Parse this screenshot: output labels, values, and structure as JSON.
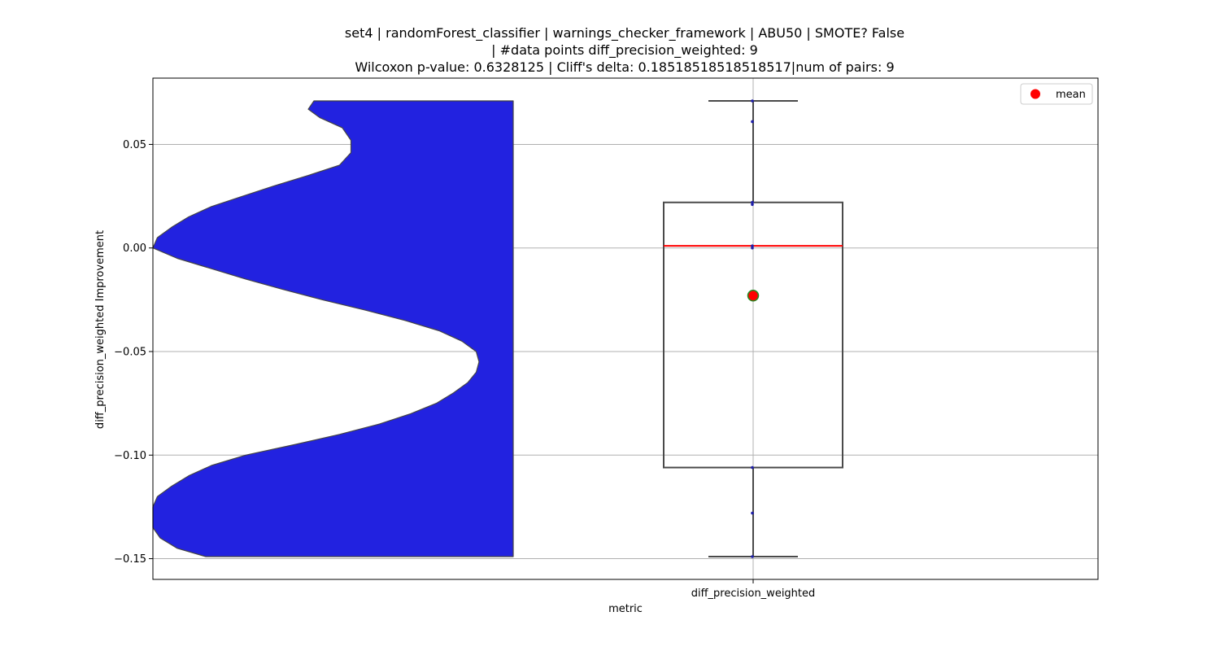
{
  "chart_data": {
    "type": "violin+box",
    "title_lines": [
      "set4 | randomForest_classifier | warnings_checker_framework | ABU50 | SMOTE? False",
      "| #data points diff_precision_weighted: 9",
      "Wilcoxon p-value: 0.6328125 | Cliff's delta: 0.18518518518518517|num of pairs: 9"
    ],
    "xlabel": "metric",
    "ylabel": "diff_precision_weighted Improvement",
    "category": "diff_precision_weighted",
    "ylim": [
      -0.16,
      0.082
    ],
    "yticks": [
      0.05,
      0.0,
      -0.05,
      -0.1,
      -0.15
    ],
    "ytick_labels": [
      "0.05",
      "0.00",
      "−0.05",
      "−0.10",
      "−0.15"
    ],
    "grid": true,
    "legend": {
      "position": "top-right",
      "entries": [
        {
          "label": "mean",
          "color": "#ff0000"
        }
      ]
    },
    "colors": {
      "violin": "#2222e0",
      "median": "#ff0000",
      "mean_marker": "#ff0000",
      "mean_edge": "#228b22",
      "points": "#1f1fa8",
      "box": "#444444"
    },
    "box": {
      "q1": -0.106,
      "median": 0.001,
      "q3": 0.022,
      "whisker_low": -0.149,
      "whisker_high": 0.071,
      "mean": -0.023
    },
    "points": [
      0.071,
      0.061,
      0.022,
      0.021,
      0.001,
      0.0,
      -0.106,
      -0.128,
      -0.149
    ],
    "violin_profile": [
      [
        0.071,
        0.7
      ],
      [
        0.067,
        0.72
      ],
      [
        0.063,
        0.68
      ],
      [
        0.058,
        0.6
      ],
      [
        0.052,
        0.57
      ],
      [
        0.046,
        0.57
      ],
      [
        0.04,
        0.61
      ],
      [
        0.035,
        0.72
      ],
      [
        0.03,
        0.84
      ],
      [
        0.025,
        0.95
      ],
      [
        0.02,
        1.06
      ],
      [
        0.015,
        1.14
      ],
      [
        0.01,
        1.2
      ],
      [
        0.005,
        1.25
      ],
      [
        0.0,
        1.28
      ],
      [
        -0.005,
        1.18
      ],
      [
        -0.01,
        1.06
      ],
      [
        -0.015,
        0.94
      ],
      [
        -0.02,
        0.81
      ],
      [
        -0.025,
        0.67
      ],
      [
        -0.03,
        0.52
      ],
      [
        -0.035,
        0.38
      ],
      [
        -0.04,
        0.26
      ],
      [
        -0.045,
        0.18
      ],
      [
        -0.05,
        0.13
      ],
      [
        -0.055,
        0.12
      ],
      [
        -0.06,
        0.13
      ],
      [
        -0.065,
        0.16
      ],
      [
        -0.07,
        0.21
      ],
      [
        -0.075,
        0.27
      ],
      [
        -0.08,
        0.36
      ],
      [
        -0.085,
        0.47
      ],
      [
        -0.09,
        0.61
      ],
      [
        -0.095,
        0.77
      ],
      [
        -0.1,
        0.94
      ],
      [
        -0.105,
        1.06
      ],
      [
        -0.11,
        1.14
      ],
      [
        -0.115,
        1.2
      ],
      [
        -0.12,
        1.25
      ],
      [
        -0.125,
        1.28
      ],
      [
        -0.13,
        1.29
      ],
      [
        -0.135,
        1.28
      ],
      [
        -0.14,
        1.24
      ],
      [
        -0.145,
        1.18
      ],
      [
        -0.149,
        1.08
      ]
    ]
  }
}
